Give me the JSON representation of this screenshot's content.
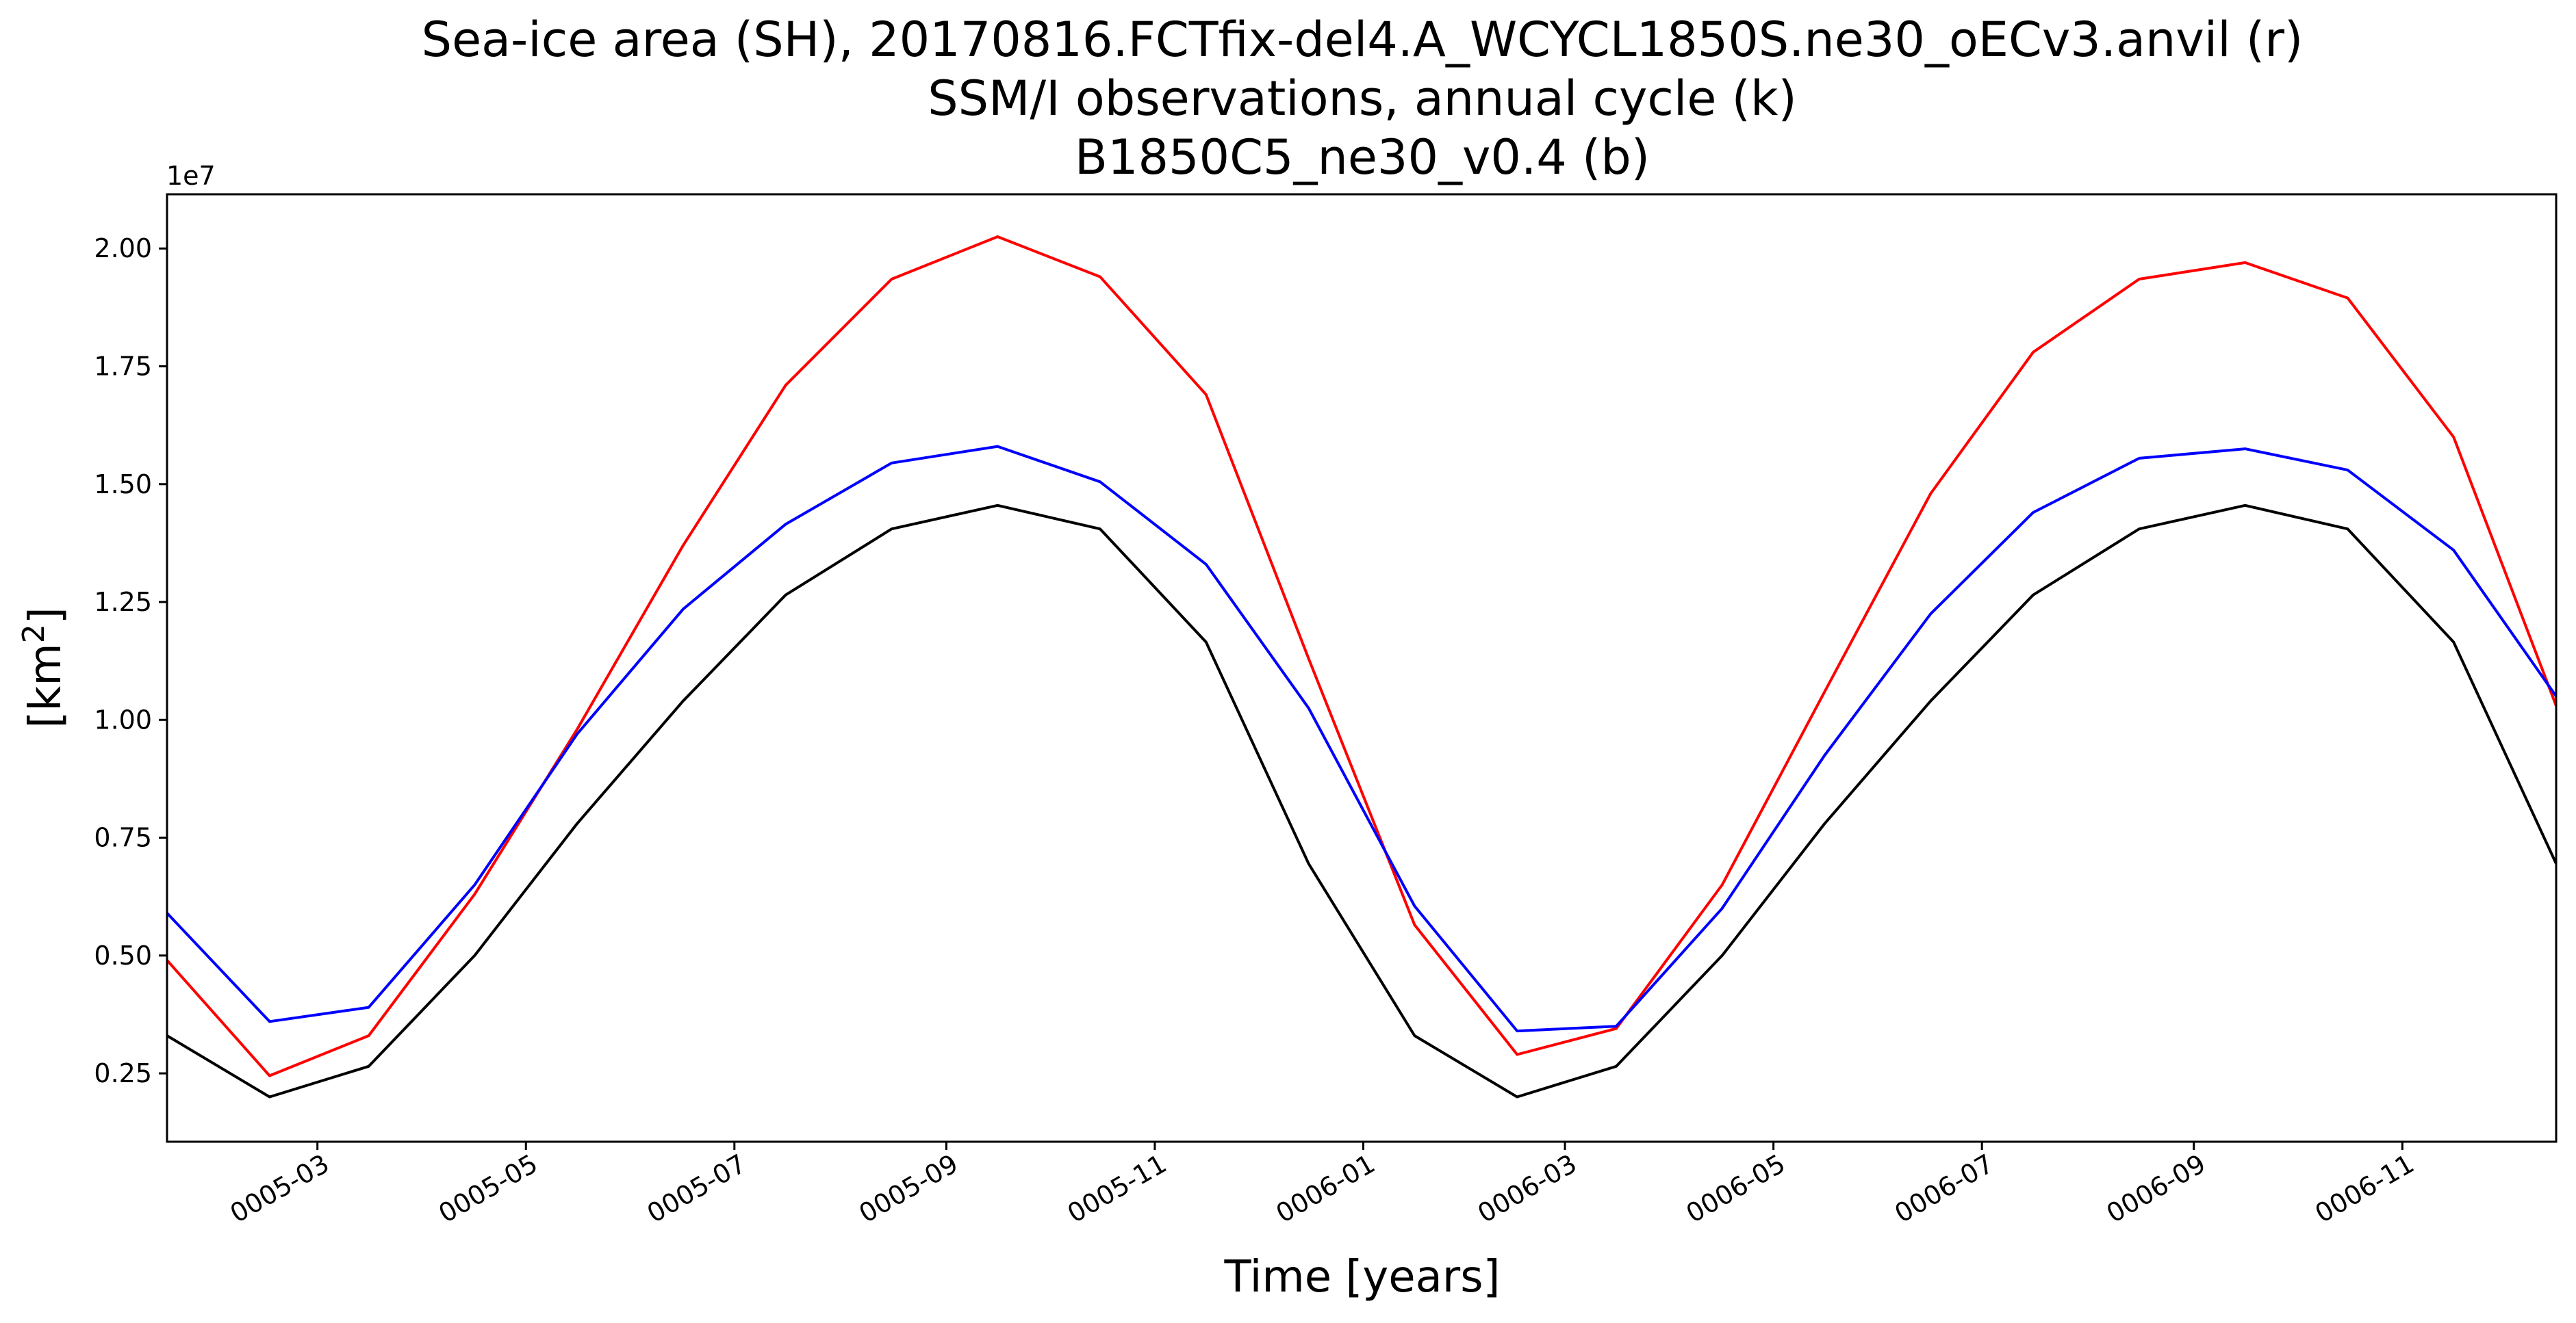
{
  "chart_data": {
    "type": "line",
    "title_lines": [
      "Sea-ice area (SH), 20170816.FCTfix-del4.A_WCYCL1850S.ne30_oECv3.anvil (r)",
      "SSM/I observations, annual cycle (k)",
      "B1850C5_ne30_v0.4 (b)"
    ],
    "xlabel": "Time [years]",
    "ylabel_base": "[km",
    "ylabel_sup": "2",
    "ylabel_end": "]",
    "y_offset_label": "1e7",
    "ylim": [
      0.105,
      2.115
    ],
    "xlim": [
      "0005-01-16",
      "0006-12-16"
    ],
    "y_ticks": [
      {
        "value": 0.25,
        "label": "0.25"
      },
      {
        "value": 0.5,
        "label": "0.50"
      },
      {
        "value": 0.75,
        "label": "0.75"
      },
      {
        "value": 1.0,
        "label": "1.00"
      },
      {
        "value": 1.25,
        "label": "1.25"
      },
      {
        "value": 1.5,
        "label": "1.50"
      },
      {
        "value": 1.75,
        "label": "1.75"
      },
      {
        "value": 2.0,
        "label": "2.00"
      }
    ],
    "x_ticks": [
      {
        "date": "0005-03-01",
        "label": "0005-03"
      },
      {
        "date": "0005-05-01",
        "label": "0005-05"
      },
      {
        "date": "0005-07-01",
        "label": "0005-07"
      },
      {
        "date": "0005-09-01",
        "label": "0005-09"
      },
      {
        "date": "0005-11-01",
        "label": "0005-11"
      },
      {
        "date": "0006-01-01",
        "label": "0006-01"
      },
      {
        "date": "0006-03-01",
        "label": "0006-03"
      },
      {
        "date": "0006-05-01",
        "label": "0006-05"
      },
      {
        "date": "0006-07-01",
        "label": "0006-07"
      },
      {
        "date": "0006-09-01",
        "label": "0006-09"
      },
      {
        "date": "0006-11-01",
        "label": "0006-11"
      }
    ],
    "x": [
      "0005-01-16",
      "0005-02-15",
      "0005-03-16",
      "0005-04-16",
      "0005-05-16",
      "0005-06-16",
      "0005-07-16",
      "0005-08-16",
      "0005-09-16",
      "0005-10-16",
      "0005-11-16",
      "0005-12-16",
      "0006-01-16",
      "0006-02-15",
      "0006-03-16",
      "0006-04-16",
      "0006-05-16",
      "0006-06-16",
      "0006-07-16",
      "0006-08-16",
      "0006-09-16",
      "0006-10-16",
      "0006-11-16",
      "0006-12-16"
    ],
    "series": [
      {
        "color": "#ff0000",
        "values": [
          0.49,
          0.245,
          0.33,
          0.63,
          0.98,
          1.37,
          1.71,
          1.935,
          2.025,
          1.94,
          1.69,
          1.13,
          0.565,
          0.29,
          0.345,
          0.65,
          1.06,
          1.48,
          1.78,
          1.935,
          1.97,
          1.895,
          1.6,
          1.03
        ]
      },
      {
        "color": "#0000ff",
        "values": [
          0.59,
          0.36,
          0.39,
          0.65,
          0.97,
          1.235,
          1.415,
          1.545,
          1.58,
          1.505,
          1.33,
          1.025,
          0.605,
          0.34,
          0.35,
          0.6,
          0.925,
          1.225,
          1.44,
          1.555,
          1.575,
          1.53,
          1.36,
          1.05
        ]
      },
      {
        "color": "#000000",
        "values": [
          0.33,
          0.2,
          0.265,
          0.5,
          0.78,
          1.04,
          1.265,
          1.405,
          1.455,
          1.405,
          1.165,
          0.695,
          0.33,
          0.2,
          0.265,
          0.5,
          0.78,
          1.04,
          1.265,
          1.405,
          1.455,
          1.405,
          1.165,
          0.695
        ]
      }
    ]
  }
}
